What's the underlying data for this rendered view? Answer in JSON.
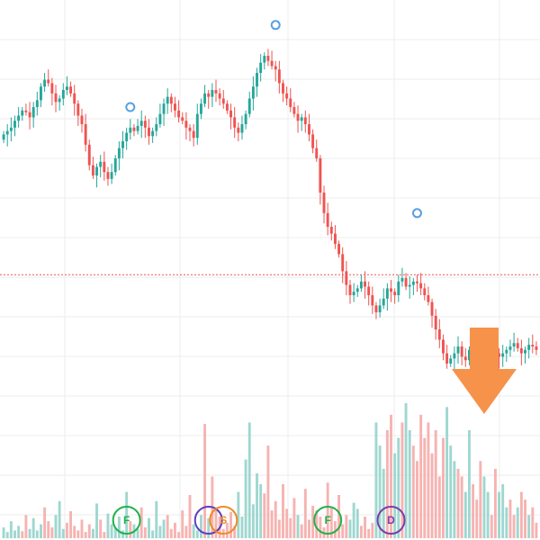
{
  "chart_data": {
    "type": "candlestick",
    "grid": true,
    "x": [
      1,
      2,
      3,
      4,
      5,
      6,
      7,
      8,
      9,
      10,
      11,
      12,
      13,
      14,
      15,
      16,
      17,
      18,
      19,
      20,
      21,
      22,
      23,
      24,
      25,
      26,
      27,
      28,
      29,
      30,
      31,
      32,
      33,
      34,
      35,
      36,
      37,
      38,
      39,
      40,
      41,
      42,
      43,
      44,
      45,
      46,
      47,
      48,
      49,
      50,
      51,
      52,
      53,
      54,
      55,
      56,
      57,
      58,
      59,
      60,
      61,
      62,
      63,
      64,
      65,
      66,
      67,
      68,
      69,
      70,
      71,
      72,
      73,
      74,
      75,
      76,
      77,
      78,
      79,
      80,
      81,
      82,
      83,
      84,
      85,
      86,
      87,
      88,
      89,
      90,
      91,
      92,
      93,
      94,
      95,
      96,
      97,
      98,
      99,
      100,
      101,
      102,
      103,
      104,
      105,
      106,
      107,
      108,
      109,
      110,
      111,
      112,
      113,
      114,
      115,
      116,
      117,
      118,
      119,
      120,
      121,
      122,
      123,
      124,
      125,
      126,
      127,
      128,
      129,
      130,
      131,
      132,
      133,
      134,
      135,
      136,
      137,
      138,
      139,
      140,
      141,
      142,
      143,
      144
    ],
    "close": [
      34.0,
      36.0,
      38.0,
      42.0,
      45.0,
      48.0,
      47.0,
      44.0,
      50.0,
      54.0,
      62.0,
      66.0,
      64.0,
      58.0,
      53.0,
      55.0,
      60.0,
      62.0,
      58.0,
      52.0,
      45.0,
      40.0,
      28.0,
      16.0,
      10.0,
      15.0,
      18.0,
      12.0,
      8.0,
      12.0,
      20.0,
      26.0,
      30.0,
      35.0,
      38.0,
      36.0,
      39.0,
      42.0,
      38.0,
      33.0,
      36.0,
      40.0,
      46.0,
      52.0,
      56.0,
      52.0,
      48.0,
      44.0,
      42.0,
      38.0,
      36.0,
      32.0,
      46.0,
      52.0,
      58.0,
      56.0,
      60.0,
      58.0,
      55.0,
      52.0,
      48.0,
      44.0,
      38.0,
      35.0,
      40.0,
      46.0,
      55.0,
      62.0,
      70.0,
      76.0,
      80.0,
      77.0,
      74.0,
      72.0,
      64.0,
      58.0,
      55.0,
      50.0,
      46.0,
      42.0,
      44.0,
      40.0,
      34.0,
      26.0,
      20.0,
      0.0,
      -12.0,
      -20.0,
      -24.0,
      -30.0,
      -36.0,
      -46.0,
      -54.0,
      -60.0,
      -58.0,
      -56.0,
      -52.0,
      -55.0,
      -60.0,
      -66.0,
      -70.0,
      -66.0,
      -62.0,
      -56.0,
      -58.0,
      -60.0,
      -52.0,
      -50.0,
      -55.0,
      -54.0,
      -52.0,
      -53.0,
      -56.0,
      -60.0,
      -64.0,
      -72.0,
      -80.0,
      -86.0,
      -94.0,
      -100.0,
      -97.0,
      -94.0,
      -90.0,
      -96.0,
      -98.0,
      -92.0,
      -90.0,
      -94.0,
      -96.0,
      -98.0,
      -92.0,
      -90.0,
      -94.0,
      -96.0,
      -94.0,
      -92.0,
      -90.0,
      -88.0,
      -91.0,
      -94.0,
      -92.0,
      -89.0,
      -90.0,
      -92.0
    ],
    "volume": [
      14,
      8,
      22,
      10,
      16,
      9,
      30,
      12,
      26,
      10,
      18,
      40,
      22,
      14,
      30,
      48,
      12,
      20,
      35,
      16,
      10,
      24,
      8,
      18,
      12,
      45,
      24,
      8,
      32,
      18,
      14,
      28,
      10,
      60,
      22,
      18,
      12,
      40,
      14,
      26,
      10,
      48,
      16,
      24,
      30,
      12,
      20,
      8,
      36,
      16,
      56,
      18,
      10,
      30,
      148,
      26,
      80,
      40,
      28,
      12,
      20,
      34,
      16,
      60,
      28,
      102,
      150,
      44,
      84,
      70,
      58,
      120,
      36,
      48,
      24,
      70,
      38,
      26,
      52,
      30,
      18,
      64,
      24,
      42,
      36,
      28,
      14,
      72,
      40,
      22,
      56,
      18,
      30,
      24,
      46,
      38,
      16,
      28,
      12,
      20,
      150,
      120,
      90,
      140,
      160,
      110,
      130,
      150,
      175,
      140,
      120,
      100,
      160,
      130,
      150,
      110,
      140,
      80,
      130,
      170,
      120,
      100,
      90,
      80,
      60,
      140,
      70,
      50,
      100,
      80,
      60,
      30,
      90,
      60,
      70,
      40,
      50,
      30,
      40,
      60,
      50,
      30,
      40,
      20
    ],
    "volume_up": [
      true,
      true,
      true,
      true,
      true,
      false,
      false,
      true,
      true,
      true,
      true,
      false,
      false,
      false,
      true,
      true,
      true,
      false,
      false,
      false,
      false,
      false,
      false,
      false,
      true,
      true,
      false,
      false,
      true,
      true,
      true,
      true,
      true,
      true,
      false,
      true,
      true,
      false,
      false,
      true,
      true,
      true,
      true,
      true,
      false,
      false,
      false,
      false,
      false,
      false,
      false,
      true,
      true,
      true,
      false,
      true,
      false,
      false,
      false,
      false,
      false,
      false,
      false,
      true,
      true,
      true,
      true,
      true,
      true,
      true,
      false,
      false,
      false,
      false,
      false,
      false,
      false,
      false,
      false,
      true,
      false,
      false,
      false,
      false,
      false,
      false,
      false,
      false,
      false,
      false,
      false,
      false,
      false,
      true,
      true,
      true,
      false,
      false,
      false,
      false,
      true,
      true,
      true,
      false,
      false,
      true,
      true,
      false,
      true,
      true,
      false,
      false,
      false,
      false,
      false,
      false,
      false,
      false,
      false,
      true,
      true,
      true,
      false,
      false,
      true,
      true,
      false,
      false,
      false,
      true,
      true,
      false,
      false,
      true,
      true,
      true,
      false,
      false,
      true,
      false,
      false,
      true,
      false,
      false
    ],
    "current_price_line": -48,
    "marker_circles": [
      {
        "x": 35,
        "value": 50
      },
      {
        "x": 74,
        "value": 98
      },
      {
        "x": 112,
        "value": -12
      }
    ],
    "event_badges": [
      {
        "x": 34,
        "label": "F",
        "color": "#22b14c"
      },
      {
        "x": 56,
        "label": "",
        "color": "#5b3fbf"
      },
      {
        "x": 60,
        "label": "S",
        "color": "#f08a24"
      },
      {
        "x": 88,
        "label": "F",
        "color": "#22b14c"
      },
      {
        "x": 105,
        "label": "D",
        "color": "#7e3ca8"
      }
    ],
    "arrow": {
      "x": 130,
      "direction": "down",
      "color": "#f7924a"
    }
  },
  "colors": {
    "up": "#26a69a",
    "down": "#ef5350",
    "volume_up": "#9fd7d0",
    "volume_down": "#f6b3b1",
    "grid": "#ececec",
    "price_line": "#ef5350"
  }
}
